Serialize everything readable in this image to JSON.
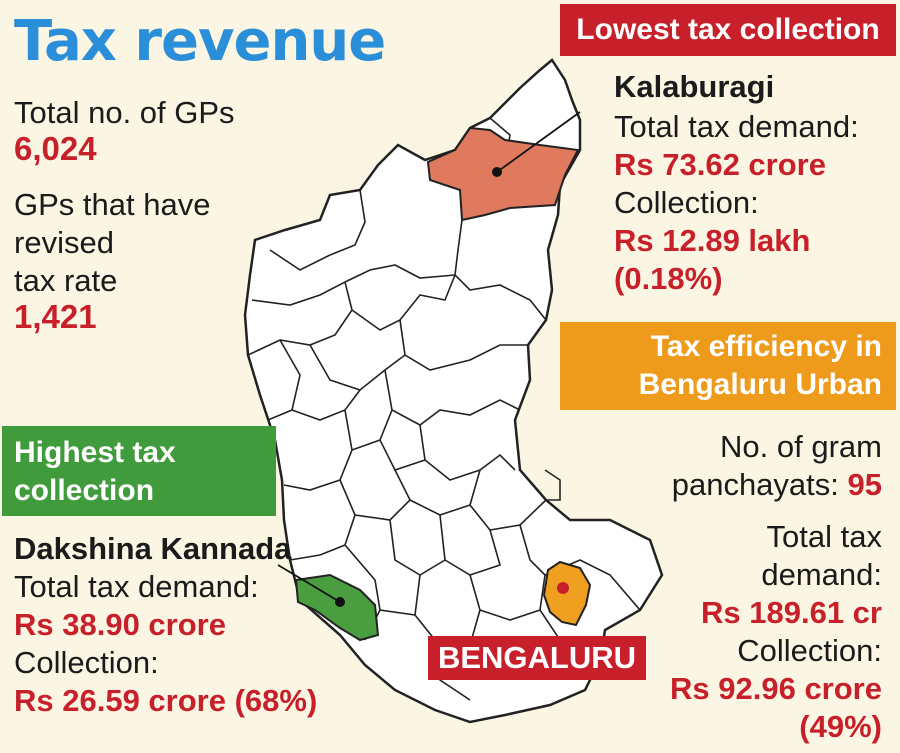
{
  "title": "Tax revenue",
  "summary": {
    "total_gps_label": "Total no. of GPs",
    "total_gps_value": "6,024",
    "revised_label_1": "GPs that have",
    "revised_label_2": "revised",
    "revised_label_3": "tax rate",
    "revised_value": "1,421"
  },
  "lowest": {
    "heading": "Lowest tax collection",
    "district": "Kalaburagi",
    "demand_label": "Total tax demand:",
    "demand_value": "Rs 73.62 crore",
    "collection_label": "Collection:",
    "collection_value": "Rs 12.89 lakh",
    "collection_pct": "(0.18%)"
  },
  "efficiency": {
    "heading_1": "Tax efficiency in",
    "heading_2": "Bengaluru Urban",
    "gp_label_1": "No. of gram",
    "gp_label_2": "panchayats:",
    "gp_value": "95",
    "demand_label_1": "Total tax",
    "demand_label_2": "demand:",
    "demand_value": "Rs 189.61 cr",
    "collection_label": "Collection:",
    "collection_value": "Rs 92.96 crore",
    "collection_pct": "(49%)"
  },
  "highest": {
    "heading_1": "Highest tax",
    "heading_2": "collection",
    "district": "Dakshina Kannada",
    "demand_label": "Total tax demand:",
    "demand_value": "Rs 38.90 crore",
    "collection_label": "Collection:",
    "collection_value": "Rs 26.59 crore (68%)"
  },
  "city_label": "BENGALURU",
  "colors": {
    "title": "#2a8ed8",
    "value_red": "#c8202b",
    "lowest_box": "#c8202b",
    "highest_box": "#3f9b3b",
    "efficiency_box": "#ee9a1a",
    "kalaburagi_fill": "#e07a5f",
    "dakshina_fill": "#4a9e3f",
    "bengaluru_fill": "#f0a020",
    "map_fill": "#ffffff",
    "map_stroke": "#222222"
  }
}
